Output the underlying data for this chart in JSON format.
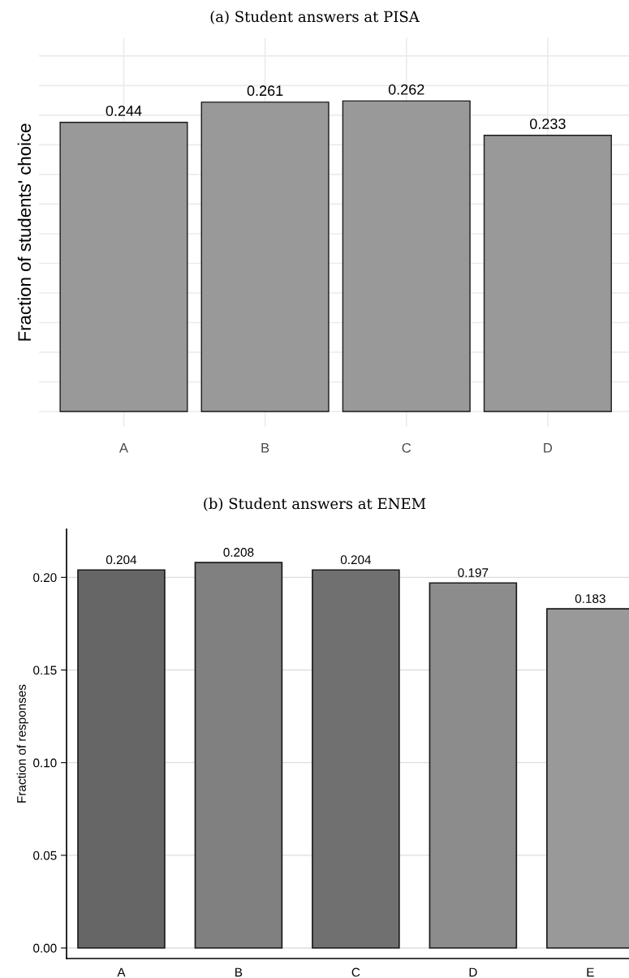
{
  "chart_data": [
    {
      "type": "bar",
      "title": "(a) Student answers at PISA",
      "ylabel": "Fraction of students' choice",
      "categories": [
        "A",
        "B",
        "C",
        "D"
      ],
      "values": [
        0.244,
        0.261,
        0.262,
        0.233
      ],
      "color": "#999999",
      "data_labels": true,
      "ylim": [
        -0.013,
        0.315
      ],
      "yticks": [
        {
          "value": 0,
          "label": null
        },
        {
          "value": 0.025,
          "label": null
        },
        {
          "value": 0.05,
          "label": null
        },
        {
          "value": 0.075,
          "label": null
        },
        {
          "value": 0.1,
          "label": null
        },
        {
          "value": 0.125,
          "label": null
        },
        {
          "value": 0.15,
          "label": null
        },
        {
          "value": 0.175,
          "label": null
        },
        {
          "value": 0.2,
          "label": null
        },
        {
          "value": 0.225,
          "label": null
        },
        {
          "value": 0.25,
          "label": null
        },
        {
          "value": 0.275,
          "label": null
        },
        {
          "value": 0.3,
          "label": null
        }
      ],
      "tick_labels": "x",
      "grid": true
    },
    {
      "type": "bar",
      "title": "(b) Student answers at ENEM",
      "ylabel": "Fraction of responses",
      "categories": [
        "A",
        "B",
        "C",
        "D",
        "E"
      ],
      "values": [
        0.204,
        0.208,
        0.204,
        0.197,
        0.183
      ],
      "colors": [
        "#666666",
        "#808080",
        "#707070",
        "#8c8c8c",
        "#999999"
      ],
      "data_labels": true,
      "ylim": [
        -0.0057,
        0.226
      ],
      "yticks": [
        {
          "value": 0,
          "label": "0.00"
        },
        {
          "value": 0.05,
          "label": "0.05"
        },
        {
          "value": 0.1,
          "label": "0.10"
        },
        {
          "value": 0.15,
          "label": "0.15"
        },
        {
          "value": 0.2,
          "label": "0.20"
        }
      ],
      "grid": "y"
    }
  ]
}
